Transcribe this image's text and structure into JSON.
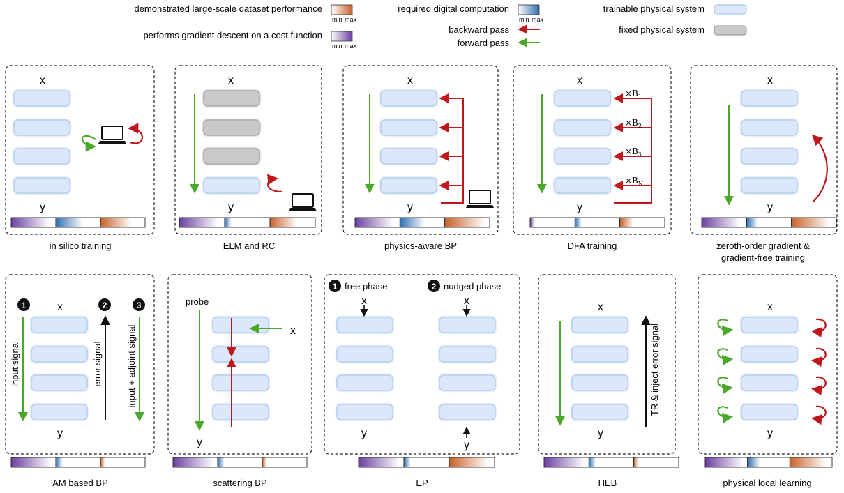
{
  "legend": {
    "dataset_performance": "demonstrated large-scale dataset performance",
    "gradient_descent": "performs gradient descent on a cost function",
    "digital_computation": "required digital computation",
    "backward_pass": "backward pass",
    "forward_pass": "forward pass",
    "trainable_system": "trainable physical system",
    "fixed_system": "fixed physical system",
    "min_label": "min",
    "max_label": "max"
  },
  "common": {
    "x": "x",
    "y": "y"
  },
  "colors": {
    "forward": "#4aa82a",
    "backward": "#c0171c",
    "trainable_fill": "#dbe8fb",
    "trainable_stroke": "#a9c4ea",
    "fixed_fill": "#c9c9c9",
    "fixed_stroke": "#9a9a9a",
    "purple": "#6b3fa0",
    "blue": "#2f6db0",
    "orange": "#c8622a"
  },
  "panels": [
    {
      "caption": "in silico training",
      "bars": [
        0.85,
        0.6,
        0.7
      ]
    },
    {
      "caption": "ELM and RC",
      "bars": [
        0.85,
        0.15,
        0.6
      ]
    },
    {
      "caption": "physics-aware BP",
      "bars": [
        0.85,
        0.55,
        0.9
      ]
    },
    {
      "caption": "DFA training",
      "bars": [
        0.1,
        0.15,
        0.3
      ]
    },
    {
      "caption_line1": "zeroth-order gradient &",
      "caption_line2": "gradient-free training",
      "bars": [
        0.85,
        0.25,
        0.85
      ]
    },
    {
      "caption": "AM based BP",
      "bars": [
        0.9,
        0.15,
        0.1
      ],
      "labels": {
        "input_signal": "input signal",
        "error_signal": "error signal",
        "input_adjoint": "input + adjoint signal"
      },
      "steps": [
        "1",
        "2",
        "3"
      ]
    },
    {
      "caption": "scattering BP",
      "bars": [
        0.9,
        0.15,
        0.1
      ],
      "labels": {
        "probe": "probe"
      }
    },
    {
      "caption": "EP",
      "bars": [
        0.9,
        0.15,
        0.85
      ],
      "labels": {
        "free_phase": "free phase",
        "nudged_phase": "nudged phase"
      },
      "steps": [
        "1",
        "2"
      ]
    },
    {
      "caption": "HEB",
      "bars": [
        0.9,
        0.15,
        0.1
      ],
      "labels": {
        "tr_inject": "TR & inject error signal"
      }
    },
    {
      "caption": "physical local learning",
      "bars": [
        0.9,
        0.3,
        0.85
      ]
    }
  ],
  "dfa": {
    "b1": "×B",
    "s1": "1",
    "s2": "2",
    "s3": "3",
    "sN": "N"
  }
}
